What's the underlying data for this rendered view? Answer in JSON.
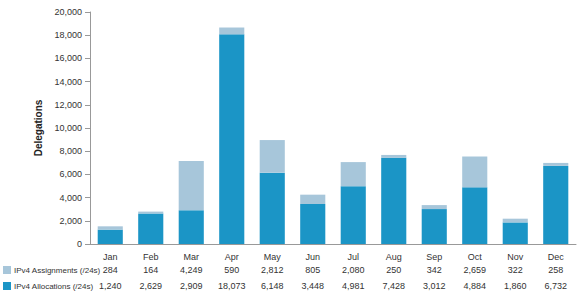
{
  "chart_data": {
    "type": "bar",
    "stacked": true,
    "grid": false,
    "legend": "bottom",
    "y_label": "Delegations",
    "categories": [
      "Jan",
      "Feb",
      "Mar",
      "Apr",
      "May",
      "Jun",
      "Jul",
      "Aug",
      "Sep",
      "Oct",
      "Nov",
      "Dec"
    ],
    "series": [
      {
        "name": "IPv4 Assignments (/24s)",
        "color": "#a7c6da",
        "values": [
          284,
          164,
          4249,
          590,
          2812,
          805,
          2080,
          250,
          342,
          2659,
          322,
          258
        ],
        "value_labels": [
          "284",
          "164",
          "4,249",
          "590",
          "2,812",
          "805",
          "2,080",
          "250",
          "342",
          "2,659",
          "322",
          "258"
        ]
      },
      {
        "name": "IPv4 Allocations (/24s)",
        "color": "#1b95c6",
        "values": [
          1240,
          2629,
          2909,
          18073,
          6148,
          3448,
          4981,
          7428,
          3012,
          4884,
          1860,
          6732
        ],
        "value_labels": [
          "1,240",
          "2,629",
          "2,909",
          "18,073",
          "6,148",
          "3,448",
          "4,981",
          "7,428",
          "3,012",
          "4,884",
          "1,860",
          "6,732"
        ]
      }
    ],
    "ylim": [
      0,
      20000
    ],
    "yticks": [
      0,
      {
        "value": 2000,
        "label": "2,000"
      },
      {
        "value": 4000,
        "label": "4,000"
      },
      {
        "value": 6000,
        "label": "6,000"
      },
      {
        "value": 8000,
        "label": "8,000"
      },
      {
        "value": 10000,
        "label": "10,000"
      },
      {
        "value": 12000,
        "label": "12,000"
      },
      {
        "value": 14000,
        "label": "14,000"
      },
      {
        "value": 16000,
        "label": "16,000"
      },
      {
        "value": 18000,
        "label": "18,000"
      },
      {
        "value": 20000,
        "label": "20,000"
      }
    ]
  }
}
